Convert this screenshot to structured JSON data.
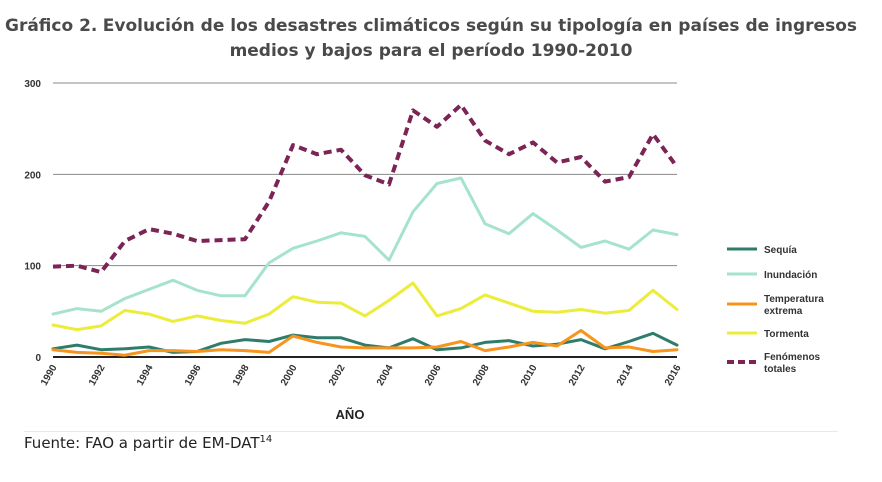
{
  "title": {
    "prefix": "Gráfico 2.",
    "line1": "Evolución de los desastres climáticos según su tipología en países de ingresos",
    "line2": "medios y bajos para el período 1990-2010"
  },
  "source": {
    "text": "Fuente: FAO a partir de EM-DAT",
    "superscript": "14"
  },
  "chart_data": {
    "type": "line",
    "title": "Gráfico 2. Evolución de los desastres climáticos según su tipología en países de ingresos medios y bajos para el período 1990-2010",
    "xlabel": "AÑO",
    "ylabel": "",
    "ylim": [
      0,
      300
    ],
    "xlim": [
      1990,
      2016
    ],
    "yticks": [
      0,
      100,
      200,
      300
    ],
    "xticks": [
      1990,
      1992,
      1994,
      1996,
      1998,
      2000,
      2002,
      2004,
      2006,
      2008,
      2010,
      2012,
      2014,
      2016
    ],
    "grid": "horizontal",
    "legend_position": "right",
    "x": [
      1990,
      1991,
      1992,
      1993,
      1994,
      1995,
      1996,
      1997,
      1998,
      1999,
      2000,
      2001,
      2002,
      2003,
      2004,
      2005,
      2006,
      2007,
      2008,
      2009,
      2010,
      2011,
      2012,
      2013,
      2014,
      2015,
      2016
    ],
    "series": [
      {
        "name": "Sequía",
        "color": "#2e7d6b",
        "dashed": false,
        "values": [
          9,
          13,
          8,
          9,
          11,
          5,
          6,
          15,
          19,
          17,
          24,
          21,
          21,
          13,
          10,
          20,
          8,
          10,
          16,
          18,
          12,
          14,
          19,
          9,
          17,
          26,
          13
        ]
      },
      {
        "name": "Inundación",
        "color": "#a6e3cc",
        "dashed": false,
        "values": [
          47,
          53,
          50,
          64,
          74,
          84,
          73,
          67,
          67,
          103,
          119,
          127,
          136,
          132,
          106,
          159,
          190,
          196,
          146,
          135,
          157,
          139,
          120,
          127,
          118,
          139,
          134
        ]
      },
      {
        "name": "Temperatura extrema",
        "color": "#f7941d",
        "dashed": false,
        "values": [
          8,
          5,
          4,
          2,
          7,
          7,
          6,
          8,
          7,
          5,
          23,
          16,
          11,
          10,
          10,
          10,
          11,
          17,
          7,
          11,
          16,
          12,
          29,
          10,
          11,
          6,
          8
        ]
      },
      {
        "name": "Tormenta",
        "color": "#ecec3a",
        "dashed": false,
        "values": [
          35,
          30,
          34,
          51,
          47,
          39,
          45,
          40,
          37,
          47,
          66,
          60,
          59,
          45,
          62,
          81,
          45,
          53,
          68,
          59,
          50,
          49,
          52,
          48,
          51,
          73,
          52
        ]
      },
      {
        "name": "Fenómenos totales",
        "color": "#7b2455",
        "dashed": true,
        "values": [
          99,
          100,
          93,
          127,
          140,
          135,
          127,
          128,
          129,
          170,
          232,
          222,
          227,
          199,
          189,
          270,
          252,
          276,
          237,
          222,
          235,
          213,
          219,
          192,
          197,
          244,
          208
        ]
      }
    ]
  }
}
